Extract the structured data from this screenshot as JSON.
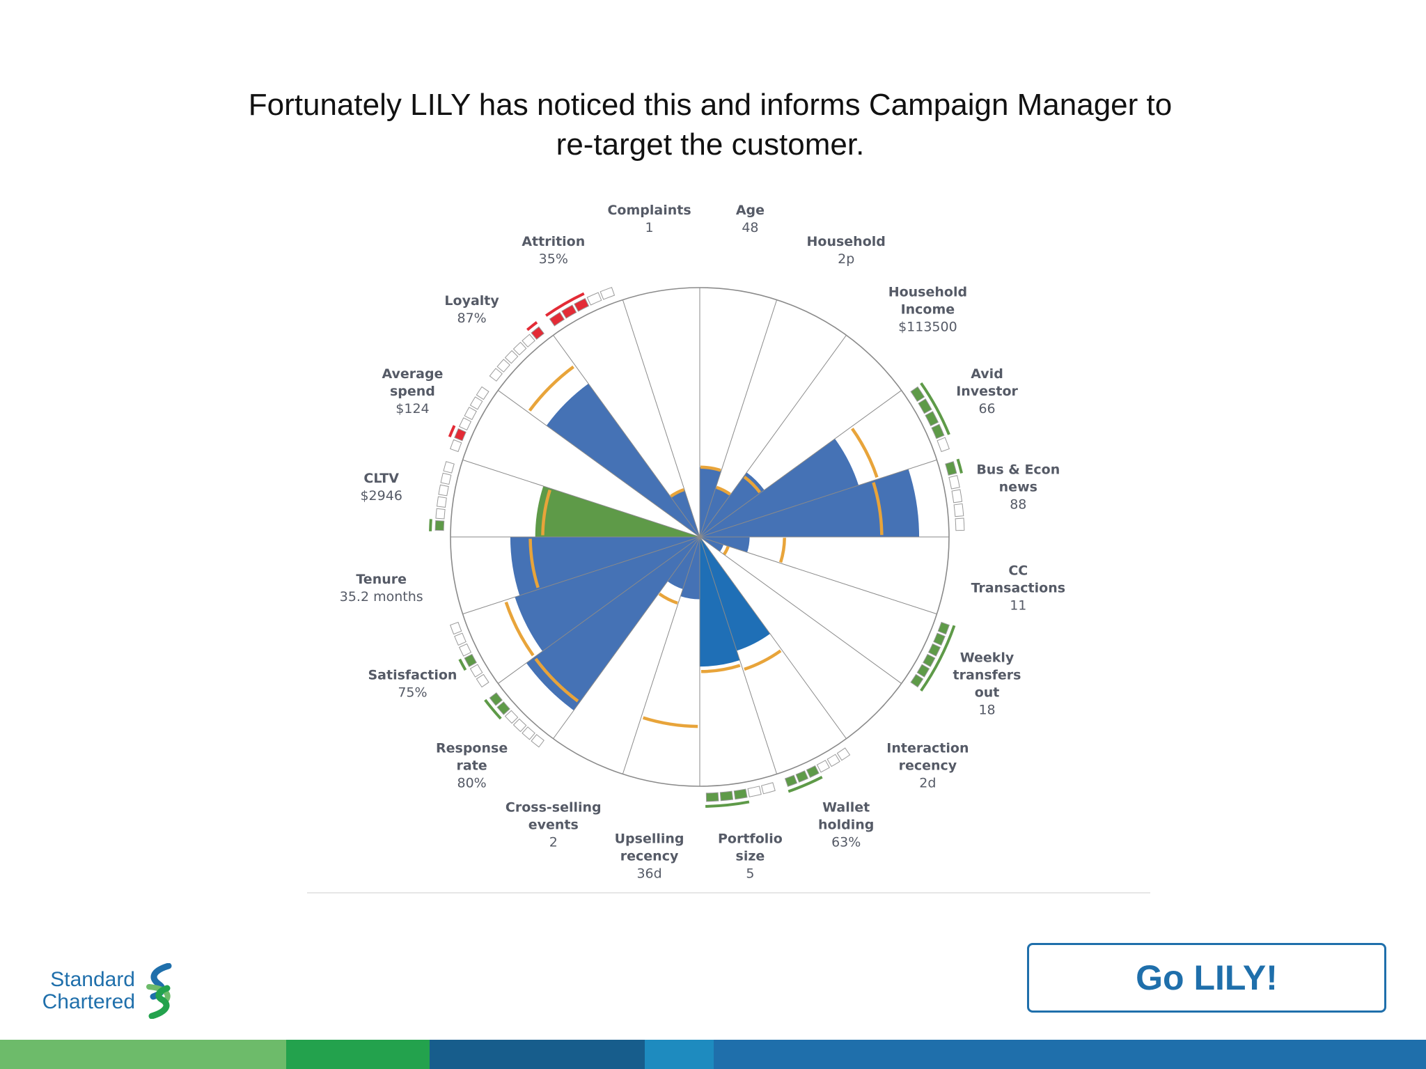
{
  "headline": {
    "line1": "Fortunately LILY has noticed this and informs Campaign Manager to",
    "line2": "re-target the customer."
  },
  "chart_data": {
    "type": "polar-area",
    "title": "",
    "max_value": 100,
    "series": [
      {
        "label": "Age",
        "value": "48",
        "score": 28,
        "ring": 28,
        "color": "#4572b5",
        "gauge": {
          "side": "none"
        }
      },
      {
        "label": "Household",
        "value": "2p",
        "score": 21,
        "ring": 21,
        "color": "#4572b5",
        "gauge": {
          "side": "none",
          "blocks": 6,
          "fill": [],
          "tone": "#5e9a48"
        }
      },
      {
        "label": "Household Income",
        "value": "$113500",
        "score": 32,
        "ring": 30,
        "color": "#4572b5",
        "gauge": {
          "side": "none",
          "blocks": 6,
          "fill": [
            0
          ],
          "tone": "#5e9a48"
        }
      },
      {
        "label": "Avid Investor",
        "value": "66",
        "score": 67,
        "ring": 75,
        "color": "#4572b5",
        "gauge": {
          "blocks": 5,
          "fill": [
            0,
            1,
            2,
            3
          ],
          "tone": "#5e9a48"
        }
      },
      {
        "label": "Bus & Econ news",
        "value": "88",
        "score": 88,
        "ring": 73,
        "color": "#4572b5",
        "gauge": {
          "blocks": 5,
          "fill": [
            0
          ],
          "tone": "#5e9a48"
        }
      },
      {
        "label": "CC Transactions",
        "value": "11",
        "score": 20,
        "ring": 34,
        "color": "#4572b5",
        "gauge": {
          "side": "none"
        }
      },
      {
        "label": "Weekly transfers out",
        "value": "18",
        "score": 10,
        "ring": 12,
        "color": "#4572b5",
        "gauge": {
          "blocks": 6,
          "fill": [
            0,
            1,
            2,
            3,
            4,
            5
          ],
          "tone": "#5e9a48"
        }
      },
      {
        "label": "Interaction recency",
        "value": "2d",
        "score": 0,
        "ring": 0,
        "color": "#4572b5",
        "gauge": {
          "side": "none"
        }
      },
      {
        "label": "Wallet holding",
        "value": "63%",
        "score": 48,
        "ring": 56,
        "color": "#1f6fb6",
        "gauge": {
          "blocks": 6,
          "fill": [
            3,
            4,
            5
          ],
          "tone": "#5e9a48"
        }
      },
      {
        "label": "Portfolio size",
        "value": "5",
        "score": 52,
        "ring": 54,
        "color": "#1f6fb6",
        "gauge": {
          "blocks": 5,
          "fill": [
            2,
            3,
            4
          ],
          "tone": "#5e9a48"
        }
      },
      {
        "label": "Upselling recency",
        "value": "36d",
        "score": 25,
        "ring": 76,
        "color": "#4572b5",
        "gauge": {
          "side": "none"
        }
      },
      {
        "label": "Cross-selling events",
        "value": "2",
        "score": 22,
        "ring": 28,
        "color": "#4572b5",
        "gauge": {
          "side": "none"
        }
      },
      {
        "label": "Response rate",
        "value": "80%",
        "score": 86,
        "ring": 82,
        "color": "#4572b5",
        "gauge": {
          "blocks": 6,
          "fill": [
            4,
            5
          ],
          "tone": "#5e9a48"
        }
      },
      {
        "label": "Satisfaction",
        "value": "75%",
        "score": 78,
        "ring": 82,
        "color": "#4572b5",
        "gauge": {
          "blocks": 6,
          "fill": [
            2
          ],
          "tone": "#5e9a48"
        }
      },
      {
        "label": "Tenure",
        "value": "35.2 months",
        "score": 76,
        "ring": 68,
        "color": "#4572b5",
        "gauge": {
          "side": "none"
        }
      },
      {
        "label": "CLTV",
        "value": "$2946",
        "score": 66,
        "ring": 63,
        "color": "#5e9a48",
        "gauge": {
          "blocks": 6,
          "fill": [
            0
          ],
          "tone": "#5e9a48"
        }
      },
      {
        "label": "Average spend",
        "value": "$124",
        "score": 0,
        "ring": 0,
        "color": "#4572b5",
        "gauge": {
          "blocks": 6,
          "fill": [
            1
          ],
          "tone": "#e32b36"
        }
      },
      {
        "label": "Loyalty",
        "value": "87%",
        "score": 76,
        "ring": 85,
        "color": "#4572b5",
        "gauge": {
          "blocks": 6,
          "fill": [
            5
          ],
          "tone": "#e32b36"
        }
      },
      {
        "label": "Attrition",
        "value": "35%",
        "score": 20,
        "ring": 20,
        "color": "#4572b5",
        "gauge": {
          "blocks": 5,
          "fill": [
            0,
            1,
            2
          ],
          "tone": "#e32b36"
        }
      },
      {
        "label": "Complaints",
        "value": "1",
        "score": 0,
        "ring": 0,
        "color": "#4572b5",
        "gauge": {
          "side": "none"
        }
      }
    ]
  },
  "logo": {
    "line1": "Standard",
    "line2": "Chartered",
    "icon": "standard-chartered-icon"
  },
  "cta": {
    "label": "Go LILY!"
  },
  "footer_colors": [
    "#6dbb6a",
    "#23a24d",
    "#175d8c",
    "#1e8bbf",
    "#1f6fab"
  ]
}
